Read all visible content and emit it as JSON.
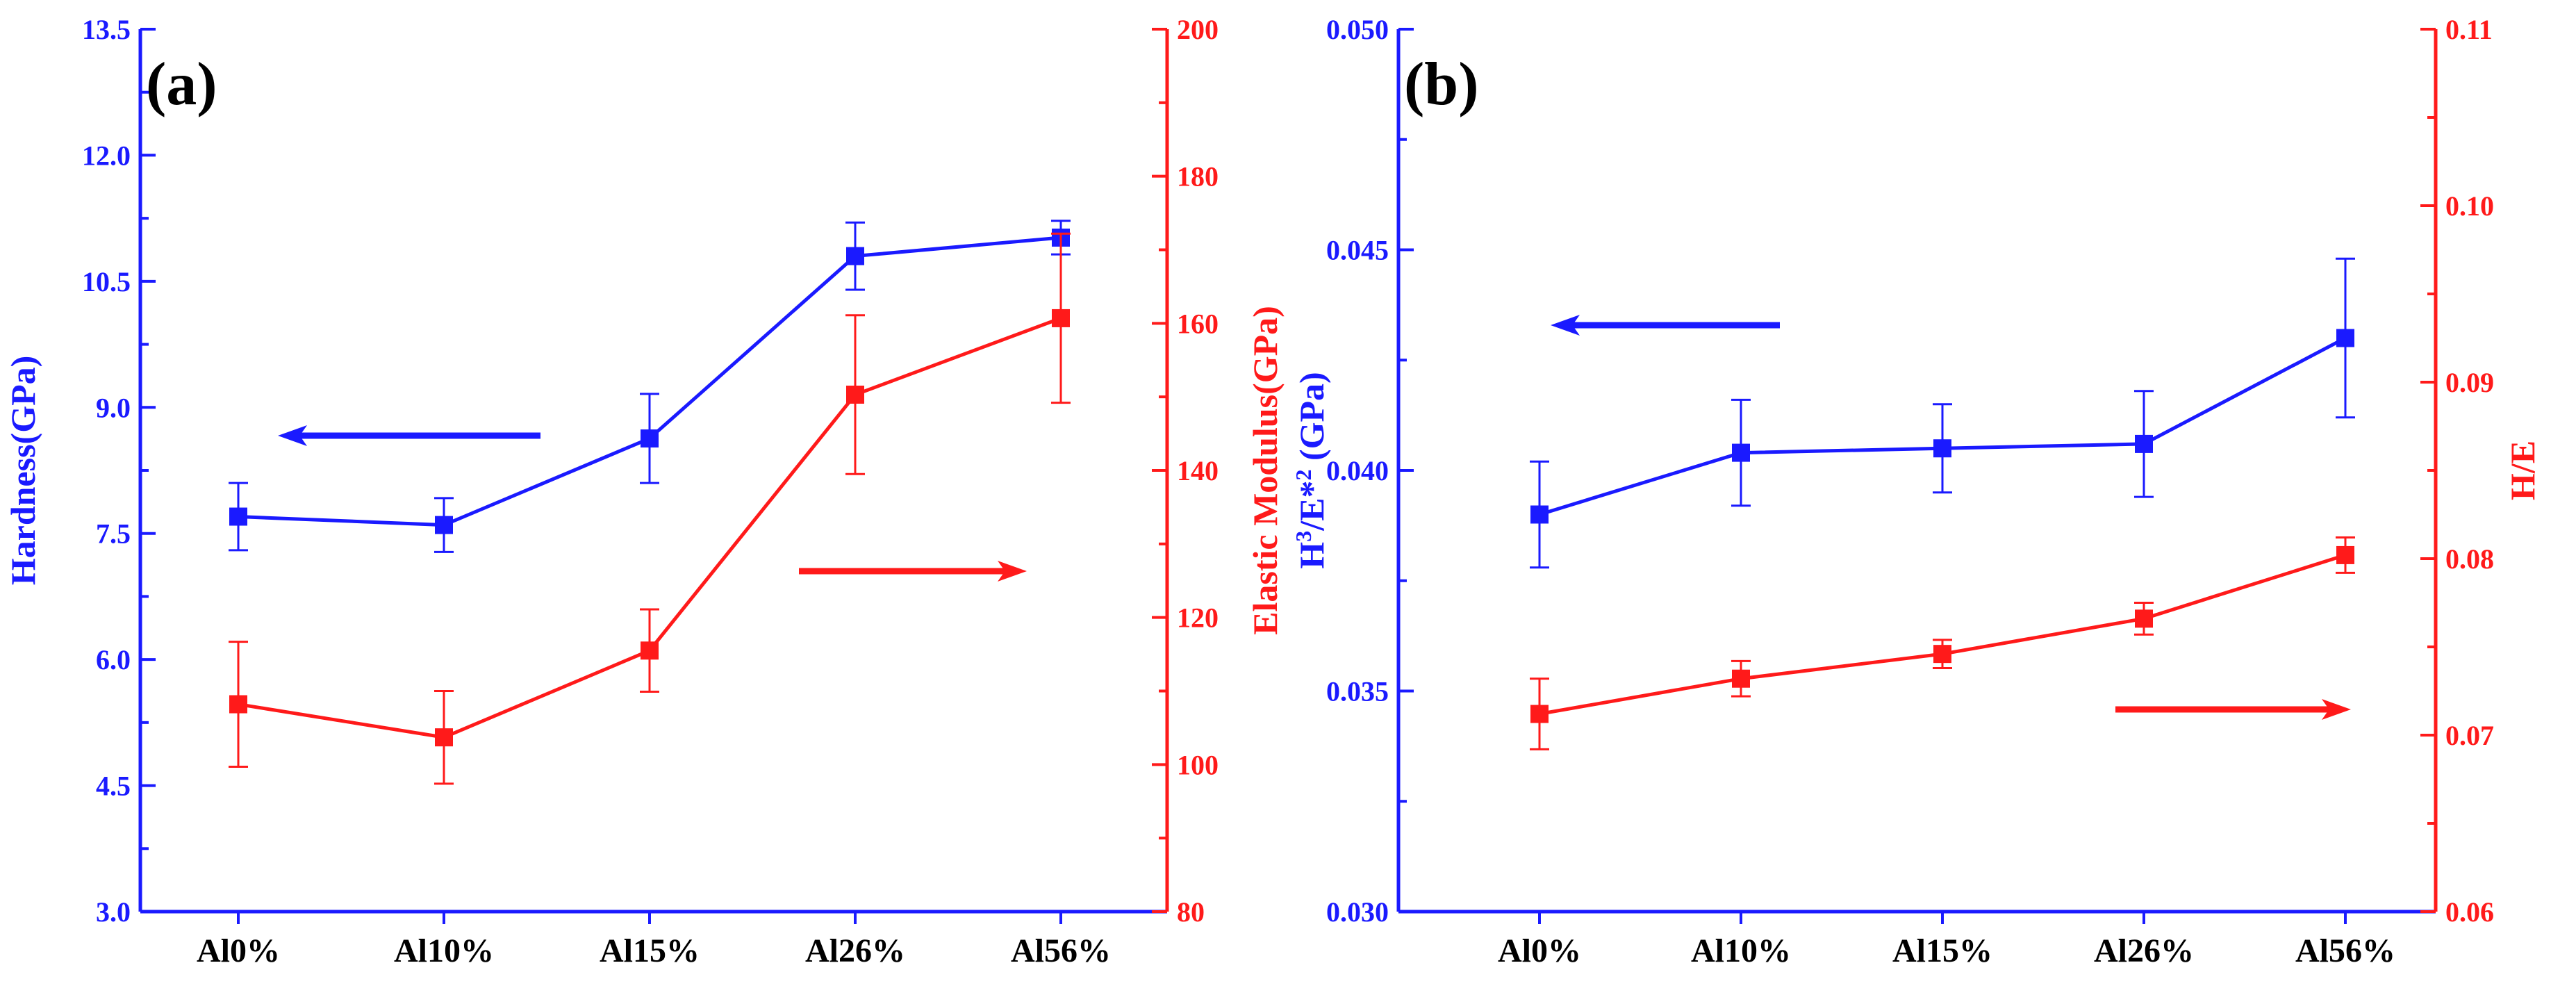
{
  "colors": {
    "left": "#1a1aff",
    "right": "#ff1a1a",
    "frame": "#1a1aff"
  },
  "chart_data": [
    {
      "type": "line",
      "panel_label": "(a)",
      "categories": [
        "Al0%",
        "Al10%",
        "Al15%",
        "Al26%",
        "Al56%"
      ],
      "left_axis": {
        "label": "Hardness(GPa)",
        "ylim": [
          3.0,
          13.5
        ],
        "ticks": [
          3.0,
          4.5,
          6.0,
          7.5,
          9.0,
          10.5,
          12.0,
          13.5
        ],
        "tick_labels": [
          "3.0",
          "4.5",
          "6.0",
          "7.5",
          "9.0",
          "10.5",
          "12.0",
          "13.5"
        ],
        "decimals": 1
      },
      "right_axis": {
        "label": "Elastic Modulus(GPa)",
        "ylim": [
          80,
          200
        ],
        "ticks": [
          80,
          100,
          120,
          140,
          160,
          180,
          200
        ],
        "tick_labels": [
          "80",
          "100",
          "120",
          "140",
          "160",
          "180",
          "200"
        ],
        "decimals": 0
      },
      "series": [
        {
          "name": "Hardness",
          "axis": "left",
          "color": "#1a1aff",
          "values": [
            7.7,
            7.6,
            8.63,
            10.8,
            11.02
          ],
          "errors": [
            0.4,
            0.32,
            0.53,
            0.4,
            0.2
          ]
        },
        {
          "name": "Elastic Modulus",
          "axis": "right",
          "color": "#ff1a1a",
          "values": [
            108.2,
            103.7,
            115.5,
            150.3,
            160.7
          ],
          "errors": [
            8.5,
            6.3,
            5.6,
            10.8,
            11.5
          ]
        }
      ],
      "annotations": [
        {
          "type": "arrow",
          "direction": "left",
          "points_to": "left axis"
        },
        {
          "type": "arrow",
          "direction": "right",
          "points_to": "right axis"
        }
      ]
    },
    {
      "type": "line",
      "panel_label": "(b)",
      "categories": [
        "Al0%",
        "Al10%",
        "Al15%",
        "Al26%",
        "Al56%"
      ],
      "left_axis": {
        "label": "H³/E*² (GPa)",
        "ylim": [
          0.03,
          0.05
        ],
        "ticks": [
          0.03,
          0.035,
          0.04,
          0.045,
          0.05
        ],
        "tick_labels": [
          "0.030",
          "0.035",
          "0.040",
          "0.045",
          "0.050"
        ],
        "decimals": 3
      },
      "right_axis": {
        "label": "H/E",
        "ylim": [
          0.06,
          0.11
        ],
        "ticks": [
          0.06,
          0.07,
          0.08,
          0.09,
          0.1,
          0.11
        ],
        "tick_labels": [
          "0.06",
          "0.07",
          "0.08",
          "0.09",
          "0.10",
          "0.11"
        ],
        "decimals": 2
      },
      "series": [
        {
          "name": "H³/E*²",
          "axis": "left",
          "color": "#1a1aff",
          "values": [
            0.039,
            0.0404,
            0.0405,
            0.0406,
            0.043
          ],
          "errors": [
            0.0012,
            0.0012,
            0.001,
            0.0012,
            0.0018
          ]
        },
        {
          "name": "H/E",
          "axis": "right",
          "color": "#ff1a1a",
          "values": [
            0.0712,
            0.0732,
            0.0746,
            0.0766,
            0.0802
          ],
          "errors": [
            0.002,
            0.001,
            0.0008,
            0.0009,
            0.001
          ]
        }
      ],
      "annotations": [
        {
          "type": "arrow",
          "direction": "left",
          "points_to": "left axis"
        },
        {
          "type": "arrow",
          "direction": "right",
          "points_to": "right axis"
        }
      ]
    }
  ]
}
